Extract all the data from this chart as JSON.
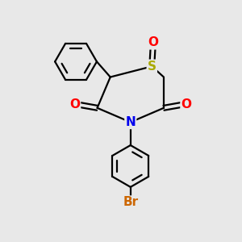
{
  "bg_color": "#e8e8e8",
  "atom_colors": {
    "S": "#aaaa00",
    "N": "#0000ee",
    "O": "#ff0000",
    "Br": "#cc6600",
    "C": "#000000"
  },
  "bond_color": "#000000",
  "bond_width": 1.6
}
